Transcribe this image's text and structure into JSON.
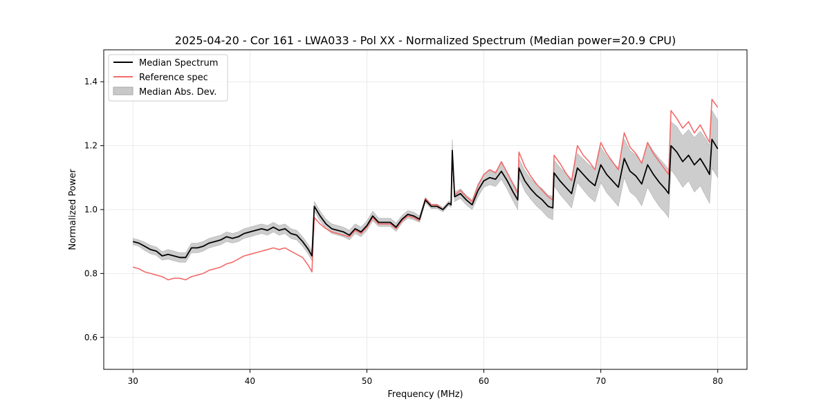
{
  "chart_data": {
    "type": "line",
    "title": "2025-04-20 - Cor 161 - LWA033 - Pol XX - Normalized Spectrum (Median power=20.9 CPU)",
    "xlabel": "Frequency (MHz)",
    "ylabel": "Normalized Power",
    "xlim": [
      27.5,
      82.5
    ],
    "ylim": [
      0.5,
      1.5
    ],
    "xticks": [
      30,
      40,
      50,
      60,
      70,
      80
    ],
    "xtick_labels": [
      "30",
      "40",
      "50",
      "60",
      "70",
      "80"
    ],
    "yticks": [
      0.6,
      0.8,
      1.0,
      1.2,
      1.4
    ],
    "ytick_labels": [
      "0.6",
      "0.8",
      "1.0",
      "1.2",
      "1.4"
    ],
    "grid": true,
    "legend_position": "top-left",
    "legend": [
      {
        "label": "Median Spectrum",
        "kind": "line",
        "color": "#000000"
      },
      {
        "label": "Reference spec",
        "kind": "line",
        "color": "#f26a6a"
      },
      {
        "label": "Median Abs. Dev.",
        "kind": "band",
        "color": "#c8c8c8"
      }
    ],
    "series": [
      {
        "name": "Median Spectrum",
        "color": "#000000",
        "x": [
          30.0,
          30.5,
          31.0,
          31.5,
          32.0,
          32.5,
          33.0,
          33.5,
          34.0,
          34.5,
          35.0,
          35.5,
          36.0,
          36.5,
          37.0,
          37.5,
          38.0,
          38.5,
          39.0,
          39.5,
          40.0,
          40.5,
          41.0,
          41.5,
          42.0,
          42.5,
          43.0,
          43.5,
          44.0,
          44.5,
          45.0,
          45.3,
          45.5,
          46.0,
          46.5,
          47.0,
          47.5,
          48.0,
          48.5,
          49.0,
          49.5,
          50.0,
          50.5,
          51.0,
          51.5,
          52.0,
          52.5,
          53.0,
          53.5,
          54.0,
          54.5,
          55.0,
          55.5,
          56.0,
          56.5,
          57.0,
          57.2,
          57.3,
          57.5,
          58.0,
          58.5,
          59.0,
          59.5,
          60.0,
          60.5,
          61.0,
          61.5,
          62.0,
          62.5,
          62.9,
          63.0,
          63.5,
          64.0,
          64.5,
          65.0,
          65.5,
          65.9,
          66.0,
          66.5,
          67.0,
          67.5,
          68.0,
          68.5,
          69.0,
          69.5,
          70.0,
          70.5,
          71.0,
          71.5,
          72.0,
          72.5,
          73.0,
          73.5,
          74.0,
          74.5,
          75.0,
          75.5,
          75.8,
          76.0,
          76.5,
          77.0,
          77.5,
          78.0,
          78.5,
          79.0,
          79.3,
          79.5,
          80.0
        ],
        "values": [
          0.9,
          0.895,
          0.885,
          0.875,
          0.87,
          0.855,
          0.86,
          0.855,
          0.85,
          0.85,
          0.88,
          0.88,
          0.885,
          0.895,
          0.9,
          0.905,
          0.915,
          0.91,
          0.915,
          0.925,
          0.93,
          0.935,
          0.94,
          0.935,
          0.945,
          0.935,
          0.94,
          0.925,
          0.92,
          0.9,
          0.875,
          0.855,
          1.01,
          0.98,
          0.955,
          0.94,
          0.935,
          0.93,
          0.92,
          0.94,
          0.93,
          0.95,
          0.98,
          0.96,
          0.96,
          0.96,
          0.945,
          0.97,
          0.985,
          0.98,
          0.97,
          1.03,
          1.01,
          1.01,
          1.0,
          1.02,
          1.015,
          1.185,
          1.04,
          1.05,
          1.03,
          1.015,
          1.06,
          1.09,
          1.1,
          1.095,
          1.12,
          1.09,
          1.055,
          1.03,
          1.13,
          1.09,
          1.065,
          1.045,
          1.03,
          1.01,
          1.005,
          1.115,
          1.09,
          1.07,
          1.05,
          1.13,
          1.11,
          1.09,
          1.075,
          1.14,
          1.11,
          1.09,
          1.07,
          1.16,
          1.12,
          1.105,
          1.08,
          1.14,
          1.11,
          1.085,
          1.065,
          1.05,
          1.2,
          1.18,
          1.15,
          1.17,
          1.14,
          1.16,
          1.13,
          1.11,
          1.22,
          1.19
        ]
      },
      {
        "name": "Reference spec",
        "color": "#f26a6a",
        "x": [
          30.0,
          30.5,
          31.0,
          31.5,
          32.0,
          32.5,
          33.0,
          33.5,
          34.0,
          34.5,
          35.0,
          35.5,
          36.0,
          36.5,
          37.0,
          37.5,
          38.0,
          38.5,
          39.0,
          39.5,
          40.0,
          40.5,
          41.0,
          41.5,
          42.0,
          42.5,
          43.0,
          43.5,
          44.0,
          44.5,
          45.0,
          45.3,
          45.5,
          46.0,
          46.5,
          47.0,
          47.5,
          48.0,
          48.5,
          49.0,
          49.5,
          50.0,
          50.5,
          51.0,
          51.5,
          52.0,
          52.5,
          53.0,
          53.5,
          54.0,
          54.5,
          55.0,
          55.5,
          56.0,
          56.5,
          57.0,
          57.2,
          57.3,
          57.5,
          58.0,
          58.5,
          59.0,
          59.5,
          60.0,
          60.5,
          61.0,
          61.5,
          62.0,
          62.5,
          62.9,
          63.0,
          63.5,
          64.0,
          64.5,
          65.0,
          65.5,
          65.9,
          66.0,
          66.5,
          67.0,
          67.5,
          68.0,
          68.5,
          69.0,
          69.5,
          70.0,
          70.5,
          71.0,
          71.5,
          72.0,
          72.5,
          73.0,
          73.5,
          74.0,
          74.5,
          75.0,
          75.5,
          75.8,
          76.0,
          76.5,
          77.0,
          77.5,
          78.0,
          78.5,
          79.0,
          79.3,
          79.5,
          80.0
        ],
        "values": [
          0.82,
          0.815,
          0.805,
          0.8,
          0.795,
          0.79,
          0.78,
          0.785,
          0.785,
          0.78,
          0.79,
          0.795,
          0.8,
          0.81,
          0.815,
          0.82,
          0.83,
          0.835,
          0.845,
          0.855,
          0.86,
          0.865,
          0.87,
          0.875,
          0.88,
          0.875,
          0.88,
          0.87,
          0.86,
          0.85,
          0.825,
          0.805,
          0.975,
          0.955,
          0.94,
          0.93,
          0.925,
          0.92,
          0.915,
          0.935,
          0.925,
          0.945,
          0.975,
          0.955,
          0.955,
          0.955,
          0.94,
          0.965,
          0.98,
          0.975,
          0.965,
          1.035,
          1.015,
          1.015,
          1.0,
          1.02,
          1.015,
          1.175,
          1.045,
          1.06,
          1.04,
          1.025,
          1.075,
          1.11,
          1.125,
          1.115,
          1.15,
          1.115,
          1.08,
          1.05,
          1.18,
          1.135,
          1.105,
          1.08,
          1.06,
          1.04,
          1.03,
          1.17,
          1.145,
          1.115,
          1.09,
          1.2,
          1.17,
          1.15,
          1.125,
          1.21,
          1.175,
          1.15,
          1.125,
          1.24,
          1.195,
          1.175,
          1.145,
          1.21,
          1.175,
          1.15,
          1.125,
          1.11,
          1.31,
          1.285,
          1.255,
          1.275,
          1.24,
          1.265,
          1.23,
          1.21,
          1.345,
          1.32
        ]
      }
    ],
    "band": {
      "name": "Median Abs. Dev.",
      "color": "#c8c8c8",
      "x": [
        30.0,
        30.5,
        31.0,
        31.5,
        32.0,
        32.5,
        33.0,
        33.5,
        34.0,
        34.5,
        35.0,
        35.5,
        36.0,
        36.5,
        37.0,
        37.5,
        38.0,
        38.5,
        39.0,
        39.5,
        40.0,
        40.5,
        41.0,
        41.5,
        42.0,
        42.5,
        43.0,
        43.5,
        44.0,
        44.5,
        45.0,
        45.3,
        45.5,
        46.0,
        46.5,
        47.0,
        47.5,
        48.0,
        48.5,
        49.0,
        49.5,
        50.0,
        50.5,
        51.0,
        51.5,
        52.0,
        52.5,
        53.0,
        53.5,
        54.0,
        54.5,
        55.0,
        55.5,
        56.0,
        56.5,
        57.0,
        57.2,
        57.3,
        57.5,
        58.0,
        58.5,
        59.0,
        59.5,
        60.0,
        60.5,
        61.0,
        61.5,
        62.0,
        62.5,
        62.9,
        63.0,
        63.5,
        64.0,
        64.5,
        65.0,
        65.5,
        65.9,
        66.0,
        66.5,
        67.0,
        67.5,
        68.0,
        68.5,
        69.0,
        69.5,
        70.0,
        70.5,
        71.0,
        71.5,
        72.0,
        72.5,
        73.0,
        73.5,
        74.0,
        74.5,
        75.0,
        75.5,
        75.8,
        76.0,
        76.5,
        77.0,
        77.5,
        78.0,
        78.5,
        79.0,
        79.3,
        79.5,
        80.0
      ],
      "lower": [
        0.89,
        0.885,
        0.872,
        0.862,
        0.857,
        0.842,
        0.845,
        0.84,
        0.835,
        0.835,
        0.865,
        0.865,
        0.87,
        0.88,
        0.885,
        0.89,
        0.9,
        0.895,
        0.9,
        0.91,
        0.915,
        0.92,
        0.925,
        0.92,
        0.93,
        0.92,
        0.925,
        0.91,
        0.905,
        0.885,
        0.86,
        0.84,
        0.995,
        0.965,
        0.94,
        0.925,
        0.92,
        0.915,
        0.905,
        0.925,
        0.915,
        0.935,
        0.965,
        0.947,
        0.947,
        0.947,
        0.932,
        0.958,
        0.973,
        0.968,
        0.96,
        1.022,
        1.003,
        1.003,
        0.993,
        1.013,
        1.007,
        1.15,
        1.025,
        1.035,
        1.015,
        1.0,
        1.04,
        1.07,
        1.078,
        1.072,
        1.095,
        1.063,
        1.027,
        1.0,
        1.1,
        1.058,
        1.033,
        1.012,
        0.995,
        0.975,
        0.968,
        1.075,
        1.048,
        1.027,
        1.005,
        1.085,
        1.062,
        1.04,
        1.024,
        1.085,
        1.053,
        1.032,
        1.01,
        1.1,
        1.055,
        1.04,
        1.012,
        1.07,
        1.037,
        1.01,
        0.99,
        0.975,
        1.125,
        1.1,
        1.07,
        1.09,
        1.055,
        1.075,
        1.04,
        1.02,
        1.13,
        1.1
      ],
      "upper": [
        0.91,
        0.905,
        0.898,
        0.888,
        0.883,
        0.868,
        0.875,
        0.87,
        0.865,
        0.865,
        0.895,
        0.895,
        0.9,
        0.91,
        0.915,
        0.92,
        0.93,
        0.925,
        0.93,
        0.94,
        0.945,
        0.95,
        0.955,
        0.95,
        0.96,
        0.95,
        0.955,
        0.94,
        0.935,
        0.915,
        0.89,
        0.87,
        1.025,
        0.995,
        0.97,
        0.955,
        0.95,
        0.945,
        0.935,
        0.955,
        0.945,
        0.965,
        0.995,
        0.973,
        0.973,
        0.973,
        0.958,
        0.982,
        0.997,
        0.992,
        0.98,
        1.038,
        1.017,
        1.017,
        1.007,
        1.027,
        1.023,
        1.22,
        1.055,
        1.065,
        1.045,
        1.03,
        1.08,
        1.11,
        1.122,
        1.118,
        1.145,
        1.117,
        1.083,
        1.06,
        1.16,
        1.122,
        1.097,
        1.078,
        1.065,
        1.045,
        1.042,
        1.155,
        1.132,
        1.113,
        1.095,
        1.175,
        1.158,
        1.14,
        1.126,
        1.195,
        1.167,
        1.148,
        1.13,
        1.22,
        1.185,
        1.17,
        1.148,
        1.21,
        1.183,
        1.16,
        1.14,
        1.125,
        1.275,
        1.26,
        1.23,
        1.25,
        1.225,
        1.245,
        1.22,
        1.2,
        1.31,
        1.28
      ]
    }
  }
}
